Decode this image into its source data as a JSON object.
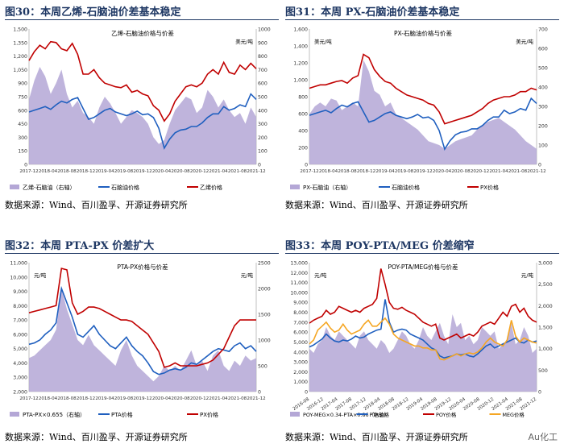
{
  "source_text": "数据来源：Wind、百川盈孚、开源证券研究所",
  "watermark": "Au化工",
  "panels": [
    {
      "label": "图30：",
      "title": "本周乙烯-石脑油价差基本稳定"
    },
    {
      "label": "图31：",
      "title": "本周 PX-石脑油价差基本稳定"
    },
    {
      "label": "图32：",
      "title": "本周 PTA-PX 价差扩大"
    },
    {
      "label": "图33：",
      "title": "本周 POY-PTA/MEG 价差缩窄"
    }
  ],
  "chart_data": [
    {
      "type": "area",
      "title": "乙烯-石脑油价格与价差",
      "left_ylim": [
        0,
        1500
      ],
      "left_ticks": [
        "0",
        "150",
        "300",
        "450",
        "600",
        "750",
        "900",
        "1,050",
        "1,200",
        "1,350",
        "1,500"
      ],
      "right_ylim": [
        0,
        1000
      ],
      "right_ticks": [
        "0",
        "100",
        "200",
        "300",
        "400",
        "500",
        "600",
        "700",
        "800",
        "900",
        "1000"
      ],
      "unit_right": "美元/吨",
      "x_labels": [
        "2017-12",
        "2018-04",
        "2018-08",
        "2018-12",
        "2019-04",
        "2019-08",
        "2019-12",
        "2020-04",
        "2020-08",
        "2020-12",
        "2021-04",
        "2021-08",
        "2021-12"
      ],
      "series": [
        {
          "name": "乙烯-石脑油（右轴）",
          "kind": "area",
          "axis": "right",
          "color": "#b4a7d6",
          "values": [
            480,
            620,
            720,
            650,
            520,
            600,
            700,
            520,
            420,
            470,
            380,
            350,
            300,
            420,
            500,
            450,
            380,
            300,
            350,
            400,
            380,
            350,
            300,
            200,
            150,
            180,
            300,
            400,
            450,
            500,
            480,
            380,
            420,
            550,
            500,
            420,
            480,
            400,
            350,
            380,
            300,
            420,
            350
          ]
        },
        {
          "name": "石脑油价格",
          "kind": "line",
          "axis": "left",
          "color": "#1f5fbf",
          "values": [
            580,
            600,
            620,
            640,
            610,
            660,
            700,
            680,
            720,
            740,
            620,
            500,
            520,
            560,
            600,
            620,
            580,
            560,
            540,
            560,
            590,
            550,
            560,
            520,
            400,
            180,
            280,
            350,
            380,
            390,
            420,
            420,
            460,
            520,
            560,
            560,
            640,
            600,
            620,
            660,
            640,
            780,
            720
          ]
        },
        {
          "name": "乙烯价格",
          "kind": "line",
          "axis": "left",
          "color": "#c00000",
          "values": [
            1150,
            1250,
            1320,
            1280,
            1360,
            1350,
            1280,
            1260,
            1340,
            1220,
            1000,
            1000,
            1050,
            960,
            900,
            880,
            860,
            850,
            880,
            800,
            820,
            780,
            760,
            650,
            600,
            480,
            560,
            700,
            780,
            860,
            880,
            860,
            900,
            1000,
            1050,
            1000,
            1130,
            1020,
            1000,
            1100,
            1050,
            1120,
            1060
          ]
        }
      ]
    },
    {
      "type": "area",
      "title": "PX-石脑油价格与价差",
      "left_ylim": [
        0,
        1600
      ],
      "left_ticks": [
        "0",
        "200",
        "400",
        "600",
        "800",
        "1,000",
        "1,200",
        "1,400",
        "1,600"
      ],
      "right_ylim": [
        0,
        700
      ],
      "right_ticks": [
        "0",
        "100",
        "200",
        "300",
        "400",
        "500",
        "600",
        "700"
      ],
      "unit_left": "美元/吨",
      "unit_right": "美元/吨",
      "x_labels": [
        "2017-12",
        "2018-04",
        "2018-08",
        "2018-12",
        "2019-04",
        "2019-08",
        "2019-12",
        "2020-04",
        "2020-08",
        "2020-12",
        "2021-04",
        "2021-08",
        "2021-12"
      ],
      "series": [
        {
          "name": "PX-石脑油（右轴）",
          "kind": "area",
          "axis": "right",
          "color": "#b4a7d6",
          "values": [
            260,
            300,
            320,
            300,
            340,
            330,
            280,
            300,
            320,
            300,
            540,
            480,
            380,
            360,
            300,
            320,
            260,
            240,
            220,
            200,
            180,
            150,
            120,
            110,
            100,
            80,
            100,
            120,
            130,
            140,
            150,
            180,
            200,
            220,
            230,
            240,
            220,
            200,
            180,
            150,
            120,
            100,
            80
          ]
        },
        {
          "name": "石脑油价格",
          "kind": "line",
          "axis": "left",
          "color": "#1f5fbf",
          "values": [
            580,
            600,
            620,
            640,
            610,
            660,
            700,
            680,
            720,
            740,
            620,
            500,
            520,
            560,
            600,
            620,
            580,
            560,
            540,
            560,
            590,
            550,
            560,
            520,
            400,
            180,
            280,
            350,
            380,
            390,
            420,
            420,
            460,
            520,
            560,
            560,
            640,
            600,
            620,
            660,
            640,
            780,
            720
          ]
        },
        {
          "name": "PX价格",
          "kind": "line",
          "axis": "left",
          "color": "#c00000",
          "values": [
            900,
            920,
            940,
            940,
            960,
            980,
            990,
            960,
            1020,
            1050,
            1300,
            1260,
            1120,
            1040,
            980,
            960,
            900,
            860,
            820,
            800,
            780,
            760,
            720,
            700,
            620,
            480,
            500,
            520,
            540,
            560,
            580,
            620,
            660,
            720,
            760,
            780,
            800,
            800,
            820,
            860,
            860,
            900,
            880
          ]
        }
      ]
    },
    {
      "type": "area",
      "title": "PTA-PX价格与价差",
      "left_ylim": [
        2000,
        11000
      ],
      "left_ticks": [
        "2,000",
        "3,000",
        "4,000",
        "5,000",
        "6,000",
        "7,000",
        "8,000",
        "9,000",
        "10,000",
        "11,000"
      ],
      "right_ylim": [
        0,
        2500
      ],
      "right_ticks": [
        "0",
        "500",
        "1000",
        "1500",
        "2000",
        "2500"
      ],
      "unit_left": "元/吨",
      "unit_right": "元/吨",
      "x_labels": [
        "2017-12",
        "2018-04",
        "2018-08",
        "2018-12",
        "2019-04",
        "2019-08",
        "2019-12",
        "2020-04",
        "2020-08",
        "2020-12",
        "2021-04",
        "2021-08",
        "2021-12"
      ],
      "series": [
        {
          "name": "PTA-PX×0.655（右轴）",
          "kind": "area",
          "axis": "right",
          "color": "#b4a7d6",
          "values": [
            650,
            700,
            800,
            900,
            1000,
            1200,
            2000,
            1600,
            1300,
            1000,
            900,
            1100,
            900,
            800,
            700,
            600,
            500,
            800,
            1000,
            700,
            500,
            400,
            300,
            200,
            300,
            500,
            400,
            500,
            400,
            600,
            800,
            500,
            600,
            400,
            700,
            800,
            500,
            400,
            600,
            500,
            700,
            600,
            650
          ]
        },
        {
          "name": "PTA价格",
          "kind": "line",
          "axis": "left",
          "color": "#1f5fbf",
          "values": [
            5300,
            5400,
            5600,
            6000,
            6300,
            6800,
            9200,
            8200,
            7200,
            6000,
            5800,
            6200,
            6600,
            6000,
            5600,
            5200,
            5000,
            5400,
            5800,
            5200,
            4800,
            4500,
            4000,
            3400,
            3200,
            3300,
            3500,
            3600,
            3500,
            3700,
            4000,
            3900,
            4200,
            4500,
            4800,
            5000,
            4900,
            4800,
            5200,
            5400,
            5000,
            5200,
            4800
          ]
        },
        {
          "name": "PX价格",
          "kind": "line",
          "axis": "left",
          "color": "#c00000",
          "values": [
            7500,
            7600,
            7700,
            7800,
            7900,
            8000,
            10600,
            10500,
            8200,
            7400,
            7600,
            7900,
            7900,
            7800,
            7600,
            7400,
            7200,
            7000,
            7000,
            6900,
            6600,
            6300,
            6000,
            5400,
            4800,
            3700,
            3800,
            4000,
            3800,
            3800,
            3800,
            3800,
            3900,
            4000,
            4200,
            4600,
            5000,
            5800,
            6600,
            7000,
            7000,
            7000,
            7000
          ]
        }
      ]
    },
    {
      "type": "area",
      "title": "POY-PTA/MEG价格与价差",
      "left_ylim": [
        0,
        13000
      ],
      "left_ticks": [
        "0",
        "1,000",
        "2,000",
        "3,000",
        "4,000",
        "5,000",
        "6,000",
        "7,000",
        "8,000",
        "9,000",
        "10,000",
        "11,000",
        "12,000",
        "13,000"
      ],
      "right_ylim": [
        0,
        3000
      ],
      "right_ticks": [
        "0",
        "500",
        "1,000",
        "1,500",
        "2,000",
        "2,500",
        "3,000"
      ],
      "unit_left": "元/吨",
      "unit_right": "元/吨",
      "x_labels": [
        "2016-08",
        "2016-12",
        "2017-04",
        "2017-08",
        "2017-12",
        "2018-04",
        "2018-08",
        "2018-12",
        "2019-04",
        "2019-08",
        "2019-12",
        "2020-04",
        "2020-08",
        "2020-12",
        "2021-04",
        "2021-08",
        "2021-12"
      ],
      "series": [
        {
          "name": "POY-MEG×0.34-PTA×0.86（右轴）",
          "kind": "area",
          "axis": "right",
          "color": "#b4a7d6",
          "values": [
            1000,
            900,
            1100,
            1200,
            1500,
            1300,
            1200,
            1400,
            1300,
            1200,
            1100,
            1000,
            1300,
            1400,
            1200,
            1100,
            1000,
            1200,
            1100,
            900,
            1000,
            1200,
            1400,
            1300,
            1100,
            1000,
            1200,
            1500,
            1300,
            1200,
            1400,
            1600,
            1300,
            1100,
            1800,
            1500,
            1600,
            1200,
            1300,
            1100,
            1200,
            1500,
            1400,
            1300,
            1400,
            1000,
            1100,
            1200,
            1600,
            1100,
            1200,
            1500,
            1300,
            900,
            1000
          ]
        },
        {
          "name": "PTA价格",
          "kind": "line",
          "axis": "left",
          "color": "#1f5fbf",
          "values": [
            4500,
            4700,
            5000,
            5300,
            5800,
            5400,
            5100,
            5000,
            5200,
            5100,
            5300,
            5600,
            5400,
            5500,
            5800,
            6000,
            6200,
            6300,
            9300,
            7000,
            6000,
            6200,
            6300,
            6200,
            5800,
            5600,
            5400,
            5200,
            4800,
            4400,
            4200,
            3600,
            3400,
            3500,
            3600,
            3800,
            3700,
            3800,
            3600,
            3500,
            3800,
            4200,
            4600,
            4800,
            4400,
            4600,
            4800,
            5000,
            5200,
            5400,
            5000,
            4900,
            5200,
            5000,
            5100
          ]
        },
        {
          "name": "POY价格",
          "kind": "line",
          "axis": "left",
          "color": "#c00000",
          "values": [
            6900,
            7200,
            7400,
            7600,
            8200,
            7800,
            8000,
            8600,
            8400,
            8200,
            8000,
            8200,
            8000,
            8400,
            8600,
            8800,
            9400,
            12400,
            10800,
            9000,
            8400,
            8300,
            8500,
            8200,
            8000,
            7800,
            7400,
            7000,
            6800,
            6600,
            6800,
            5400,
            5200,
            5400,
            5600,
            5800,
            5400,
            5600,
            5800,
            5600,
            6000,
            6600,
            6800,
            7000,
            6800,
            7400,
            8000,
            7600,
            8600,
            8800,
            8000,
            8400,
            7600,
            7200,
            7000
          ]
        },
        {
          "name": "MEG价格",
          "kind": "line",
          "axis": "left",
          "color": "#f5a623",
          "values": [
            4800,
            5200,
            6200,
            6600,
            7000,
            6400,
            6000,
            6200,
            6800,
            6200,
            5800,
            6000,
            6200,
            6800,
            7200,
            6600,
            6600,
            7000,
            7400,
            6800,
            5800,
            5400,
            5200,
            5000,
            4800,
            4600,
            4600,
            4400,
            4400,
            4200,
            4200,
            3300,
            3200,
            3400,
            3600,
            3800,
            3600,
            3800,
            3900,
            3800,
            4000,
            4400,
            5000,
            5400,
            5000,
            4800,
            4600,
            5200,
            7200,
            5600,
            5000,
            5400,
            5200,
            5000,
            4900
          ]
        }
      ]
    }
  ]
}
